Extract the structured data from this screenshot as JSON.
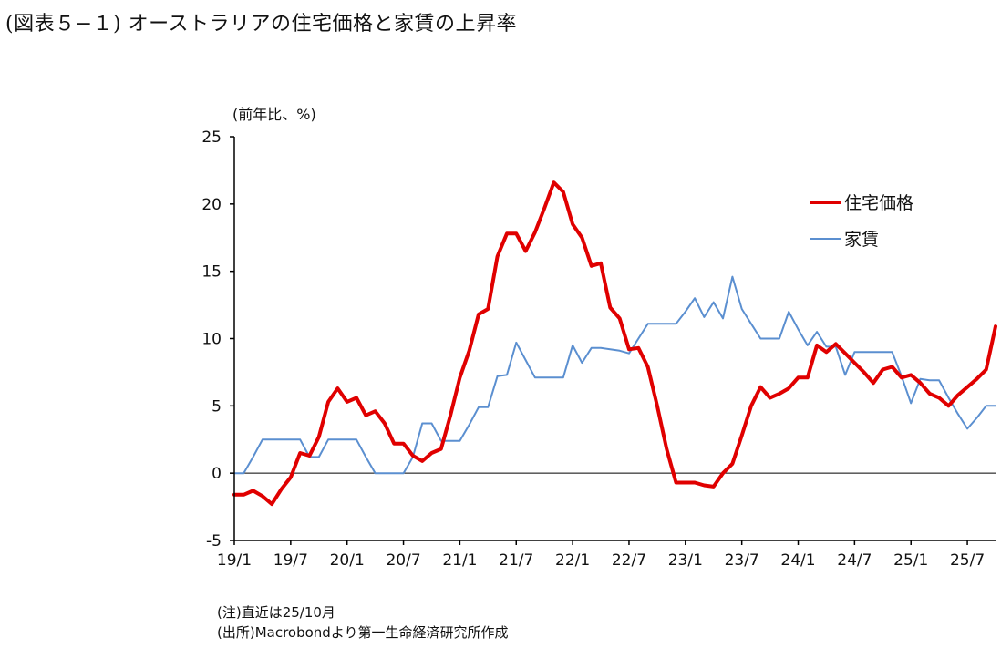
{
  "title": "(図表５−１) オーストラリアの住宅価格と家賃の上昇率",
  "notes": {
    "note": "(注)直近は25/10月",
    "source": "(出所)Macrobondより第一生命経済研究所作成"
  },
  "colors": {
    "housing": "#e00000",
    "rent": "#5b8fd0",
    "axis": "#000000"
  },
  "chart_data": {
    "type": "line",
    "title": "",
    "ylabel": "(前年比、%)",
    "xlabel": "",
    "ylim": [
      -5,
      25
    ],
    "yticks": [
      -5,
      0,
      5,
      10,
      15,
      20,
      25
    ],
    "x_start": "2019-01",
    "x_end": "2025-10",
    "xticks": [
      {
        "index": 0,
        "label": "19/1"
      },
      {
        "index": 6,
        "label": "19/7"
      },
      {
        "index": 12,
        "label": "20/1"
      },
      {
        "index": 18,
        "label": "20/7"
      },
      {
        "index": 24,
        "label": "21/1"
      },
      {
        "index": 30,
        "label": "21/7"
      },
      {
        "index": 36,
        "label": "22/1"
      },
      {
        "index": 42,
        "label": "22/7"
      },
      {
        "index": 48,
        "label": "23/1"
      },
      {
        "index": 54,
        "label": "23/7"
      },
      {
        "index": 60,
        "label": "24/1"
      },
      {
        "index": 66,
        "label": "24/7"
      },
      {
        "index": 72,
        "label": "25/1"
      },
      {
        "index": 78,
        "label": "25/7"
      }
    ],
    "legend_position": "top-right",
    "series": [
      {
        "name": "住宅価格",
        "color_key": "housing",
        "values": [
          -1.6,
          -1.6,
          -1.3,
          -1.7,
          -2.3,
          -1.2,
          -0.3,
          1.5,
          1.3,
          2.7,
          5.3,
          6.3,
          5.3,
          5.6,
          4.3,
          4.6,
          3.7,
          2.2,
          2.2,
          1.3,
          0.9,
          1.5,
          1.8,
          4.3,
          7.1,
          9.1,
          11.8,
          12.2,
          16.1,
          17.8,
          17.8,
          16.5,
          17.9,
          19.7,
          21.6,
          20.9,
          18.5,
          17.5,
          15.4,
          15.6,
          12.3,
          11.5,
          9.2,
          9.3,
          7.9,
          5.0,
          1.8,
          -0.7,
          -0.7,
          -0.7,
          -0.9,
          -1.0,
          0.0,
          0.7,
          2.8,
          5.0,
          6.4,
          5.6,
          5.9,
          6.3,
          7.1,
          7.1,
          9.5,
          9.0,
          9.6,
          8.9,
          8.2,
          7.5,
          6.7,
          7.7,
          7.9,
          7.1,
          7.3,
          6.7,
          5.9,
          5.6,
          5.0,
          5.8,
          6.4,
          7.0,
          7.7,
          10.9
        ]
      },
      {
        "name": "家賃",
        "color_key": "rent",
        "values": [
          0.0,
          0.0,
          1.2,
          2.5,
          2.5,
          2.5,
          2.5,
          2.5,
          1.2,
          1.2,
          2.5,
          2.5,
          2.5,
          2.5,
          1.2,
          0.0,
          0.0,
          0.0,
          0.0,
          1.2,
          3.7,
          3.7,
          2.4,
          2.4,
          2.4,
          3.6,
          4.9,
          4.9,
          7.2,
          7.3,
          9.7,
          8.4,
          7.1,
          7.1,
          7.1,
          7.1,
          9.5,
          8.2,
          9.3,
          9.3,
          9.2,
          9.1,
          8.9,
          10.0,
          11.1,
          11.1,
          11.1,
          11.1,
          12.0,
          13.0,
          11.6,
          12.7,
          11.5,
          14.6,
          12.2,
          11.1,
          10.0,
          10.0,
          10.0,
          12.0,
          10.7,
          9.5,
          10.5,
          9.4,
          9.4,
          7.3,
          9.0,
          9.0,
          9.0,
          9.0,
          9.0,
          7.2,
          5.2,
          7.0,
          6.9,
          6.9,
          5.6,
          4.4,
          3.3,
          4.1,
          5.0,
          5.0
        ]
      }
    ]
  }
}
